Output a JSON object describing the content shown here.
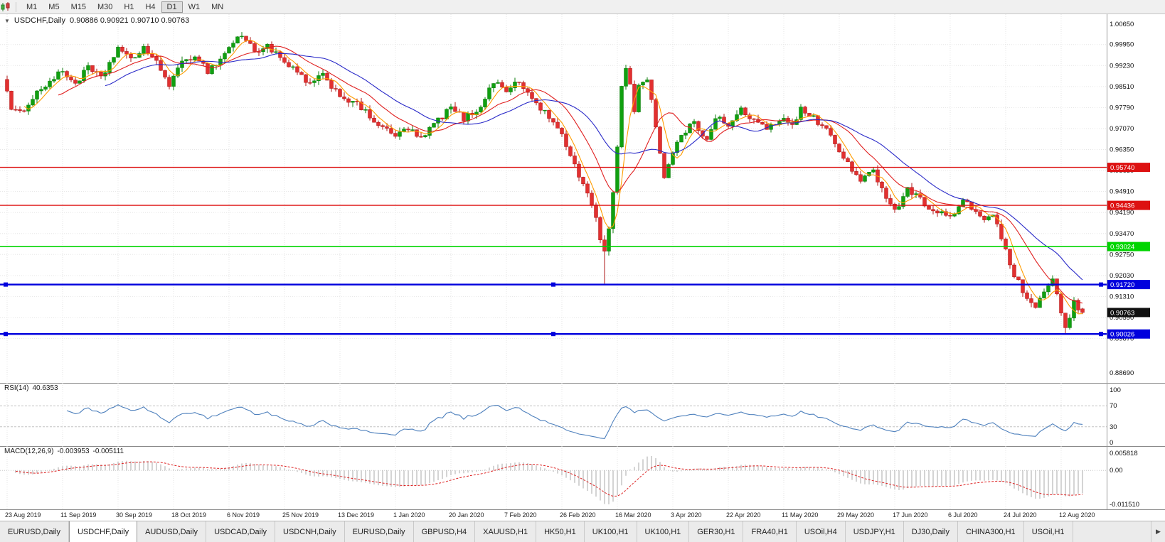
{
  "toolbar": {
    "timeframes": [
      "M1",
      "M5",
      "M15",
      "M30",
      "H1",
      "H4",
      "D1",
      "W1",
      "MN"
    ],
    "active_timeframe": "D1"
  },
  "chart_header": {
    "symbol": "USDCHF,Daily",
    "ohlc": "0.90886 0.90921 0.90710 0.90763"
  },
  "price_axis": {
    "labels": [
      "1.00650",
      "0.99950",
      "0.99230",
      "0.98510",
      "0.97790",
      "0.97070",
      "0.96350",
      "0.95630",
      "0.94910",
      "0.94190",
      "0.93470",
      "0.92750",
      "0.92030",
      "0.91310",
      "0.90590",
      "0.89870",
      "0.88690"
    ]
  },
  "rsi_panel": {
    "label": "RSI(14)",
    "value": "40.6353",
    "axis": [
      "100",
      "70",
      "30",
      "0"
    ],
    "levels": [
      70,
      30
    ]
  },
  "macd_panel": {
    "label": "MACD(12,26,9)",
    "macd_value": "-0.003953",
    "signal_value": "-0.005111",
    "axis": [
      "0.005818",
      "0.00",
      "-0.011510"
    ]
  },
  "tabs": {
    "items": [
      "EURUSD,Daily",
      "USDCHF,Daily",
      "AUDUSD,Daily",
      "USDCAD,Daily",
      "USDCNH,Daily",
      "EURUSD,Daily",
      "GBPUSD,H4",
      "XAUUSD,H1",
      "HK50,H1",
      "UK100,H1",
      "UK100,H1",
      "GER30,H1",
      "FRA40,H1",
      "USOil,H4",
      "USDJPY,H1",
      "DJ30,Daily",
      "CHINA300,H1",
      "USOil,H1"
    ],
    "active_index": 1,
    "scroll_right_icon": "▶"
  },
  "chart_data": {
    "type": "candlestick",
    "symbol": "USDCHF",
    "timeframe": "Daily",
    "candle_count": 253,
    "seed": 1234,
    "close_noise": 0.0011,
    "wick_extent": 0.0016,
    "y_range": {
      "top": 1.0065,
      "bottom": 0.8869
    },
    "close_anchors": [
      [
        0,
        0.9845
      ],
      [
        1,
        0.9768
      ],
      [
        3,
        0.9758
      ],
      [
        6,
        0.9815
      ],
      [
        9,
        0.9858
      ],
      [
        13,
        0.9902
      ],
      [
        16,
        0.9862
      ],
      [
        19,
        0.9915
      ],
      [
        22,
        0.9878
      ],
      [
        26,
        0.9985
      ],
      [
        29,
        0.9938
      ],
      [
        32,
        0.9988
      ],
      [
        35,
        0.993
      ],
      [
        38,
        0.9862
      ],
      [
        41,
        0.9928
      ],
      [
        44,
        0.9962
      ],
      [
        47,
        0.9905
      ],
      [
        50,
        0.9945
      ],
      [
        53,
        1.0005
      ],
      [
        55,
        1.0028
      ],
      [
        58,
        0.9972
      ],
      [
        61,
        0.9992
      ],
      [
        65,
        0.993
      ],
      [
        68,
        0.9898
      ],
      [
        71,
        0.9858
      ],
      [
        74,
        0.9888
      ],
      [
        78,
        0.9822
      ],
      [
        82,
        0.9788
      ],
      [
        86,
        0.9735
      ],
      [
        89,
        0.9698
      ],
      [
        91,
        0.9682
      ],
      [
        94,
        0.9708
      ],
      [
        97,
        0.9668
      ],
      [
        100,
        0.9722
      ],
      [
        104,
        0.9778
      ],
      [
        107,
        0.9742
      ],
      [
        110,
        0.9768
      ],
      [
        112,
        0.9812
      ],
      [
        114,
        0.9868
      ],
      [
        117,
        0.9842
      ],
      [
        120,
        0.9865
      ],
      [
        123,
        0.981
      ],
      [
        126,
        0.9762
      ],
      [
        129,
        0.9708
      ],
      [
        131,
        0.9648
      ],
      [
        133,
        0.9585
      ],
      [
        135,
        0.9512
      ],
      [
        137,
        0.9455
      ],
      [
        139,
        0.9332
      ],
      [
        140,
        0.9292
      ],
      [
        141,
        0.9368
      ],
      [
        142,
        0.9482
      ],
      [
        143,
        0.9638
      ],
      [
        144,
        0.9842
      ],
      [
        145,
        0.9918
      ],
      [
        146,
        0.9868
      ],
      [
        147,
        0.9768
      ],
      [
        148,
        0.9852
      ],
      [
        150,
        0.9885
      ],
      [
        152,
        0.9718
      ],
      [
        154,
        0.9538
      ],
      [
        156,
        0.9622
      ],
      [
        158,
        0.9688
      ],
      [
        161,
        0.9725
      ],
      [
        164,
        0.9672
      ],
      [
        166,
        0.9752
      ],
      [
        169,
        0.9712
      ],
      [
        172,
        0.9772
      ],
      [
        175,
        0.9735
      ],
      [
        178,
        0.9702
      ],
      [
        182,
        0.9748
      ],
      [
        184,
        0.9722
      ],
      [
        186,
        0.9772
      ],
      [
        189,
        0.9742
      ],
      [
        192,
        0.9705
      ],
      [
        195,
        0.9625
      ],
      [
        197,
        0.9592
      ],
      [
        200,
        0.9522
      ],
      [
        203,
        0.9562
      ],
      [
        206,
        0.9478
      ],
      [
        208,
        0.9422
      ],
      [
        211,
        0.9505
      ],
      [
        214,
        0.9462
      ],
      [
        217,
        0.9428
      ],
      [
        221,
        0.9402
      ],
      [
        224,
        0.9455
      ],
      [
        227,
        0.9425
      ],
      [
        229,
        0.9392
      ],
      [
        231,
        0.9418
      ],
      [
        233,
        0.9328
      ],
      [
        235,
        0.9238
      ],
      [
        237,
        0.9178
      ],
      [
        239,
        0.9118
      ],
      [
        241,
        0.9082
      ],
      [
        243,
        0.9155
      ],
      [
        245,
        0.9188
      ],
      [
        246,
        0.9135
      ],
      [
        248,
        0.9015
      ],
      [
        250,
        0.9108
      ],
      [
        252,
        0.90763
      ]
    ],
    "overrides": [
      {
        "i": 55,
        "h": 1.0038
      },
      {
        "i": 140,
        "l": 0.9175
      },
      {
        "i": 248,
        "l": 0.9003
      },
      {
        "i": 252,
        "o": 0.90886,
        "h": 0.90921,
        "l": 0.9071,
        "c": 0.90763
      }
    ],
    "x_labels": [
      {
        "i": 0,
        "label": "23 Aug 2019"
      },
      {
        "i": 13,
        "label": "11 Sep 2019"
      },
      {
        "i": 26,
        "label": "30 Sep 2019"
      },
      {
        "i": 39,
        "label": "18 Oct 2019"
      },
      {
        "i": 52,
        "label": "6 Nov 2019"
      },
      {
        "i": 65,
        "label": "25 Nov 2019"
      },
      {
        "i": 78,
        "label": "13 Dec 2019"
      },
      {
        "i": 91,
        "label": "1 Jan 2020"
      },
      {
        "i": 104,
        "label": "20 Jan 2020"
      },
      {
        "i": 117,
        "label": "7 Feb 2020"
      },
      {
        "i": 130,
        "label": "26 Feb 2020"
      },
      {
        "i": 143,
        "label": "16 Mar 2020"
      },
      {
        "i": 156,
        "label": "3 Apr 2020"
      },
      {
        "i": 169,
        "label": "22 Apr 2020"
      },
      {
        "i": 182,
        "label": "11 May 2020"
      },
      {
        "i": 195,
        "label": "29 May 2020"
      },
      {
        "i": 208,
        "label": "17 Jun 2020"
      },
      {
        "i": 221,
        "label": "6 Jul 2020"
      },
      {
        "i": 234,
        "label": "24 Jul 2020"
      },
      {
        "i": 247,
        "label": "12 Aug 2020"
      }
    ],
    "horizontal_lines": [
      {
        "price": 0.9574,
        "badge": "0.95740",
        "color": "#dd1111",
        "width": 1.4,
        "handles": false
      },
      {
        "price": 0.94436,
        "badge": "0.94436",
        "color": "#dd1111",
        "width": 1.4,
        "handles": false
      },
      {
        "price": 0.93024,
        "badge": "0.93024",
        "color": "#00d500",
        "width": 1.6,
        "handles": false
      },
      {
        "price": 0.9172,
        "badge": "0.91720",
        "color": "#0000dd",
        "width": 2.4,
        "handles": true
      },
      {
        "price": 0.90026,
        "badge": "0.90026",
        "color": "#0000dd",
        "width": 2.4,
        "handles": true
      }
    ],
    "current_price": {
      "value": 0.90763,
      "badge": "0.90763",
      "badge_color": "#101010"
    },
    "moving_averages": [
      {
        "period": 5,
        "color": "#ff9c00",
        "name": "fast"
      },
      {
        "period": 13,
        "color": "#e02020",
        "name": "medium"
      },
      {
        "period": 24,
        "color": "#2929c8",
        "name": "slow"
      }
    ],
    "indicators": {
      "rsi": {
        "period": 14,
        "current": 40.6353,
        "line_color": "#4f81bd"
      },
      "macd": {
        "fast": 12,
        "slow": 26,
        "signal": 9,
        "current_macd": -0.003953,
        "current_signal": -0.005111,
        "range": [
          -0.01151,
          0.005818
        ],
        "hist_color": "#a8a8a8",
        "signal_color": "#dd2222"
      }
    },
    "colors": {
      "up": "#10a010",
      "up_stroke": "#0c7c0c",
      "down": "#e23030",
      "down_stroke": "#ad1515",
      "grid": "#e6e6e6",
      "separator": "#8a8a8a",
      "axis_border": "#9a9a9a"
    }
  }
}
